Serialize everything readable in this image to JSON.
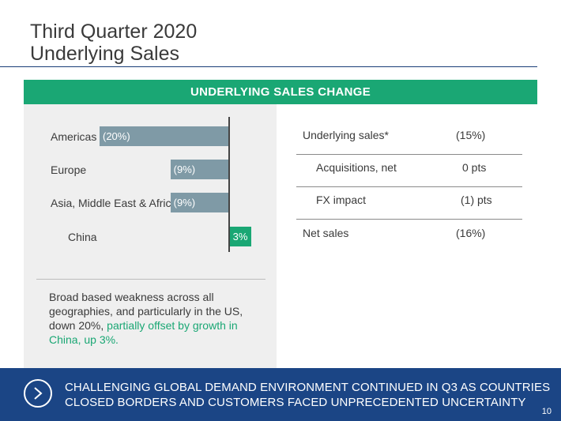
{
  "header": {
    "title_line1": "Third Quarter 2020",
    "title_line2": "Underlying Sales"
  },
  "banner": {
    "label": "UNDERLYING SALES CHANGE"
  },
  "chart_data": {
    "type": "bar",
    "orientation": "horizontal",
    "categories": [
      "Americas",
      "Europe",
      "Asia, Middle East & Africa",
      "China"
    ],
    "values": [
      -20,
      -9,
      -9,
      3
    ],
    "data_labels": [
      "(20%)",
      "(9%)",
      "(9%)",
      "3%"
    ],
    "unit": "%",
    "colors": {
      "negative": "#7f9aa6",
      "positive": "#1aa774"
    }
  },
  "note": {
    "text": "Broad based weakness across all geographies, and particularly in the US, down 20%, ",
    "highlight": "partially offset by growth in China, up 3%."
  },
  "table": {
    "rows": [
      {
        "label": "Underlying sales*",
        "value": "(15%)"
      },
      {
        "label": "Acquisitions, net",
        "value": "0 pts"
      },
      {
        "label": "FX impact",
        "value": "(1) pts"
      },
      {
        "label": "Net sales",
        "value": "(16%)"
      }
    ]
  },
  "footer": {
    "icon": "chevron-right-icon",
    "line1": "CHALLENGING GLOBAL DEMAND ENVIRONMENT CONTINUED IN Q3 AS COUNTRIES",
    "line2": "CLOSED BORDERS AND CUSTOMERS FACED UNPRECEDENTED UNCERTAINTY",
    "page_number": "10"
  },
  "colors": {
    "accent_green": "#1aa774",
    "navy": "#1b4585",
    "bar_grey": "#7f9aa6"
  }
}
